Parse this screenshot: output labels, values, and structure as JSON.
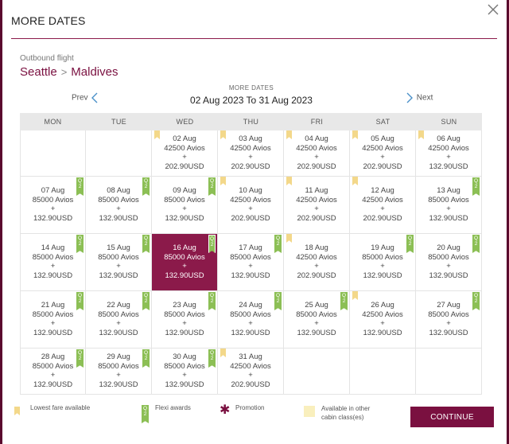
{
  "modal": {
    "title": "MORE DATES",
    "flight_label": "Outbound flight",
    "origin": "Seattle",
    "destination": "Maldives",
    "range_caption": "MORE DATES",
    "range": "02 Aug 2023 To 31 Aug 2023",
    "prev_label": "Prev",
    "next_label": "Next"
  },
  "colors": {
    "brand": "#8b1a4a",
    "lowest_fare_flag": "#f3d88a",
    "flexi_badge": "#8cbf55",
    "other_cabin": "#f9efbd"
  },
  "calendar": {
    "weekdays": [
      "MON",
      "TUE",
      "WED",
      "THU",
      "FRI",
      "SAT",
      "SUN"
    ],
    "rows": [
      [
        null,
        null,
        {
          "date": "02 Aug",
          "avios": "42500 Avios",
          "plus": "+",
          "tax": "202.90USD",
          "lowest": true,
          "flexi": false,
          "selected": false
        },
        {
          "date": "03 Aug",
          "avios": "42500 Avios",
          "plus": "+",
          "tax": "202.90USD",
          "lowest": true,
          "flexi": false,
          "selected": false
        },
        {
          "date": "04 Aug",
          "avios": "42500 Avios",
          "plus": "+",
          "tax": "202.90USD",
          "lowest": true,
          "flexi": false,
          "selected": false
        },
        {
          "date": "05 Aug",
          "avios": "42500 Avios",
          "plus": "+",
          "tax": "202.90USD",
          "lowest": true,
          "flexi": false,
          "selected": false
        },
        {
          "date": "06 Aug",
          "avios": "42500 Avios",
          "plus": "+",
          "tax": "132.90USD",
          "lowest": true,
          "flexi": false,
          "selected": false
        }
      ],
      [
        {
          "date": "07 Aug",
          "avios": "85000 Avios",
          "plus": "+",
          "tax": "132.90USD",
          "lowest": false,
          "flexi": true,
          "selected": false
        },
        {
          "date": "08 Aug",
          "avios": "85000 Avios",
          "plus": "+",
          "tax": "132.90USD",
          "lowest": false,
          "flexi": true,
          "selected": false
        },
        {
          "date": "09 Aug",
          "avios": "85000 Avios",
          "plus": "+",
          "tax": "132.90USD",
          "lowest": false,
          "flexi": true,
          "selected": false
        },
        {
          "date": "10 Aug",
          "avios": "42500 Avios",
          "plus": "+",
          "tax": "202.90USD",
          "lowest": true,
          "flexi": false,
          "selected": false
        },
        {
          "date": "11 Aug",
          "avios": "42500 Avios",
          "plus": "+",
          "tax": "202.90USD",
          "lowest": true,
          "flexi": false,
          "selected": false
        },
        {
          "date": "12 Aug",
          "avios": "42500 Avios",
          "plus": "+",
          "tax": "202.90USD",
          "lowest": true,
          "flexi": false,
          "selected": false
        },
        {
          "date": "13 Aug",
          "avios": "85000 Avios",
          "plus": "+",
          "tax": "132.90USD",
          "lowest": false,
          "flexi": true,
          "selected": false
        }
      ],
      [
        {
          "date": "14 Aug",
          "avios": "85000 Avios",
          "plus": "+",
          "tax": "132.90USD",
          "lowest": false,
          "flexi": true,
          "selected": false
        },
        {
          "date": "15 Aug",
          "avios": "85000 Avios",
          "plus": "+",
          "tax": "132.90USD",
          "lowest": false,
          "flexi": true,
          "selected": false
        },
        {
          "date": "16 Aug",
          "avios": "85000 Avios",
          "plus": "+",
          "tax": "132.90USD",
          "lowest": false,
          "flexi": true,
          "selected": true
        },
        {
          "date": "17 Aug",
          "avios": "85000 Avios",
          "plus": "+",
          "tax": "132.90USD",
          "lowest": false,
          "flexi": true,
          "selected": false
        },
        {
          "date": "18 Aug",
          "avios": "42500 Avios",
          "plus": "+",
          "tax": "202.90USD",
          "lowest": true,
          "flexi": false,
          "selected": false
        },
        {
          "date": "19 Aug",
          "avios": "85000 Avios",
          "plus": "+",
          "tax": "132.90USD",
          "lowest": false,
          "flexi": true,
          "selected": false
        },
        {
          "date": "20 Aug",
          "avios": "85000 Avios",
          "plus": "+",
          "tax": "132.90USD",
          "lowest": false,
          "flexi": true,
          "selected": false
        }
      ],
      [
        {
          "date": "21 Aug",
          "avios": "85000 Avios",
          "plus": "+",
          "tax": "132.90USD",
          "lowest": false,
          "flexi": true,
          "selected": false
        },
        {
          "date": "22 Aug",
          "avios": "85000 Avios",
          "plus": "+",
          "tax": "132.90USD",
          "lowest": false,
          "flexi": true,
          "selected": false
        },
        {
          "date": "23 Aug",
          "avios": "85000 Avios",
          "plus": "+",
          "tax": "132.90USD",
          "lowest": false,
          "flexi": true,
          "selected": false
        },
        {
          "date": "24 Aug",
          "avios": "85000 Avios",
          "plus": "+",
          "tax": "132.90USD",
          "lowest": false,
          "flexi": true,
          "selected": false
        },
        {
          "date": "25 Aug",
          "avios": "85000 Avios",
          "plus": "+",
          "tax": "132.90USD",
          "lowest": false,
          "flexi": true,
          "selected": false
        },
        {
          "date": "26 Aug",
          "avios": "42500 Avios",
          "plus": "+",
          "tax": "132.90USD",
          "lowest": true,
          "flexi": false,
          "selected": false
        },
        {
          "date": "27 Aug",
          "avios": "85000 Avios",
          "plus": "+",
          "tax": "132.90USD",
          "lowest": false,
          "flexi": true,
          "selected": false
        }
      ],
      [
        {
          "date": "28 Aug",
          "avios": "85000 Avios",
          "plus": "+",
          "tax": "132.90USD",
          "lowest": false,
          "flexi": true,
          "selected": false
        },
        {
          "date": "29 Aug",
          "avios": "85000 Avios",
          "plus": "+",
          "tax": "132.90USD",
          "lowest": false,
          "flexi": true,
          "selected": false
        },
        {
          "date": "30 Aug",
          "avios": "85000 Avios",
          "plus": "+",
          "tax": "132.90USD",
          "lowest": false,
          "flexi": true,
          "selected": false
        },
        {
          "date": "31 Aug",
          "avios": "42500 Avios",
          "plus": "+",
          "tax": "202.90USD",
          "lowest": true,
          "flexi": false,
          "selected": false
        },
        null,
        null,
        null
      ]
    ],
    "flexi_badge_text": "Q 2"
  },
  "legend": {
    "lowest": "Lowest fare available",
    "flexi": "Flexi awards",
    "promotion": "Promotion",
    "other_cabin_line1": "Available in other",
    "other_cabin_line2": "cabin class(es)"
  },
  "continue_label": "CONTINUE"
}
